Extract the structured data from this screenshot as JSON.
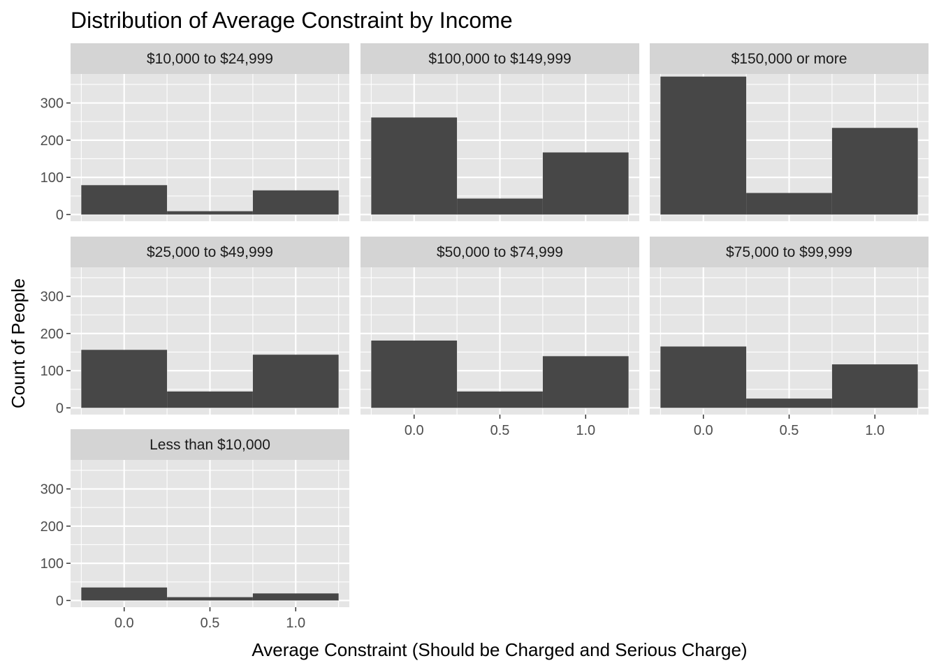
{
  "chart_data": {
    "type": "bar",
    "chart_kind": "histogram",
    "title": "Distribution of Average Constraint by Income",
    "xlabel": "Average Constraint (Should be Charged and Serious Charge)",
    "ylabel": "Count of People",
    "bin_width": 0.5,
    "bin_centers": [
      0.0,
      0.5,
      1.0
    ],
    "xlim": [
      -0.3125,
      1.3125
    ],
    "ylim": [
      -18,
      378
    ],
    "x_ticks": [
      0.0,
      0.5,
      1.0
    ],
    "x_tick_labels": [
      "0.0",
      "0.5",
      "1.0"
    ],
    "y_ticks": [
      0,
      100,
      200,
      300
    ],
    "y_tick_labels": [
      "0",
      "100",
      "200",
      "300"
    ],
    "grid": true,
    "colors": {
      "bar": "#474747",
      "panel_background": "#e5e5e5",
      "strip_background": "#d4d4d4",
      "grid": "#ffffff"
    },
    "facets": [
      {
        "name": "$10,000 to $24,999",
        "values": [
          79,
          9,
          65
        ]
      },
      {
        "name": "$100,000 to $149,999",
        "values": [
          261,
          43,
          167
        ]
      },
      {
        "name": "$150,000 or more",
        "values": [
          371,
          58,
          233
        ]
      },
      {
        "name": "$25,000 to $49,999",
        "values": [
          156,
          44,
          143
        ]
      },
      {
        "name": "$50,000 to $74,999",
        "values": [
          181,
          44,
          139
        ]
      },
      {
        "name": "$75,000 to $99,999",
        "values": [
          165,
          25,
          117
        ]
      },
      {
        "name": "Less than $10,000",
        "values": [
          35,
          9,
          19
        ]
      }
    ]
  }
}
